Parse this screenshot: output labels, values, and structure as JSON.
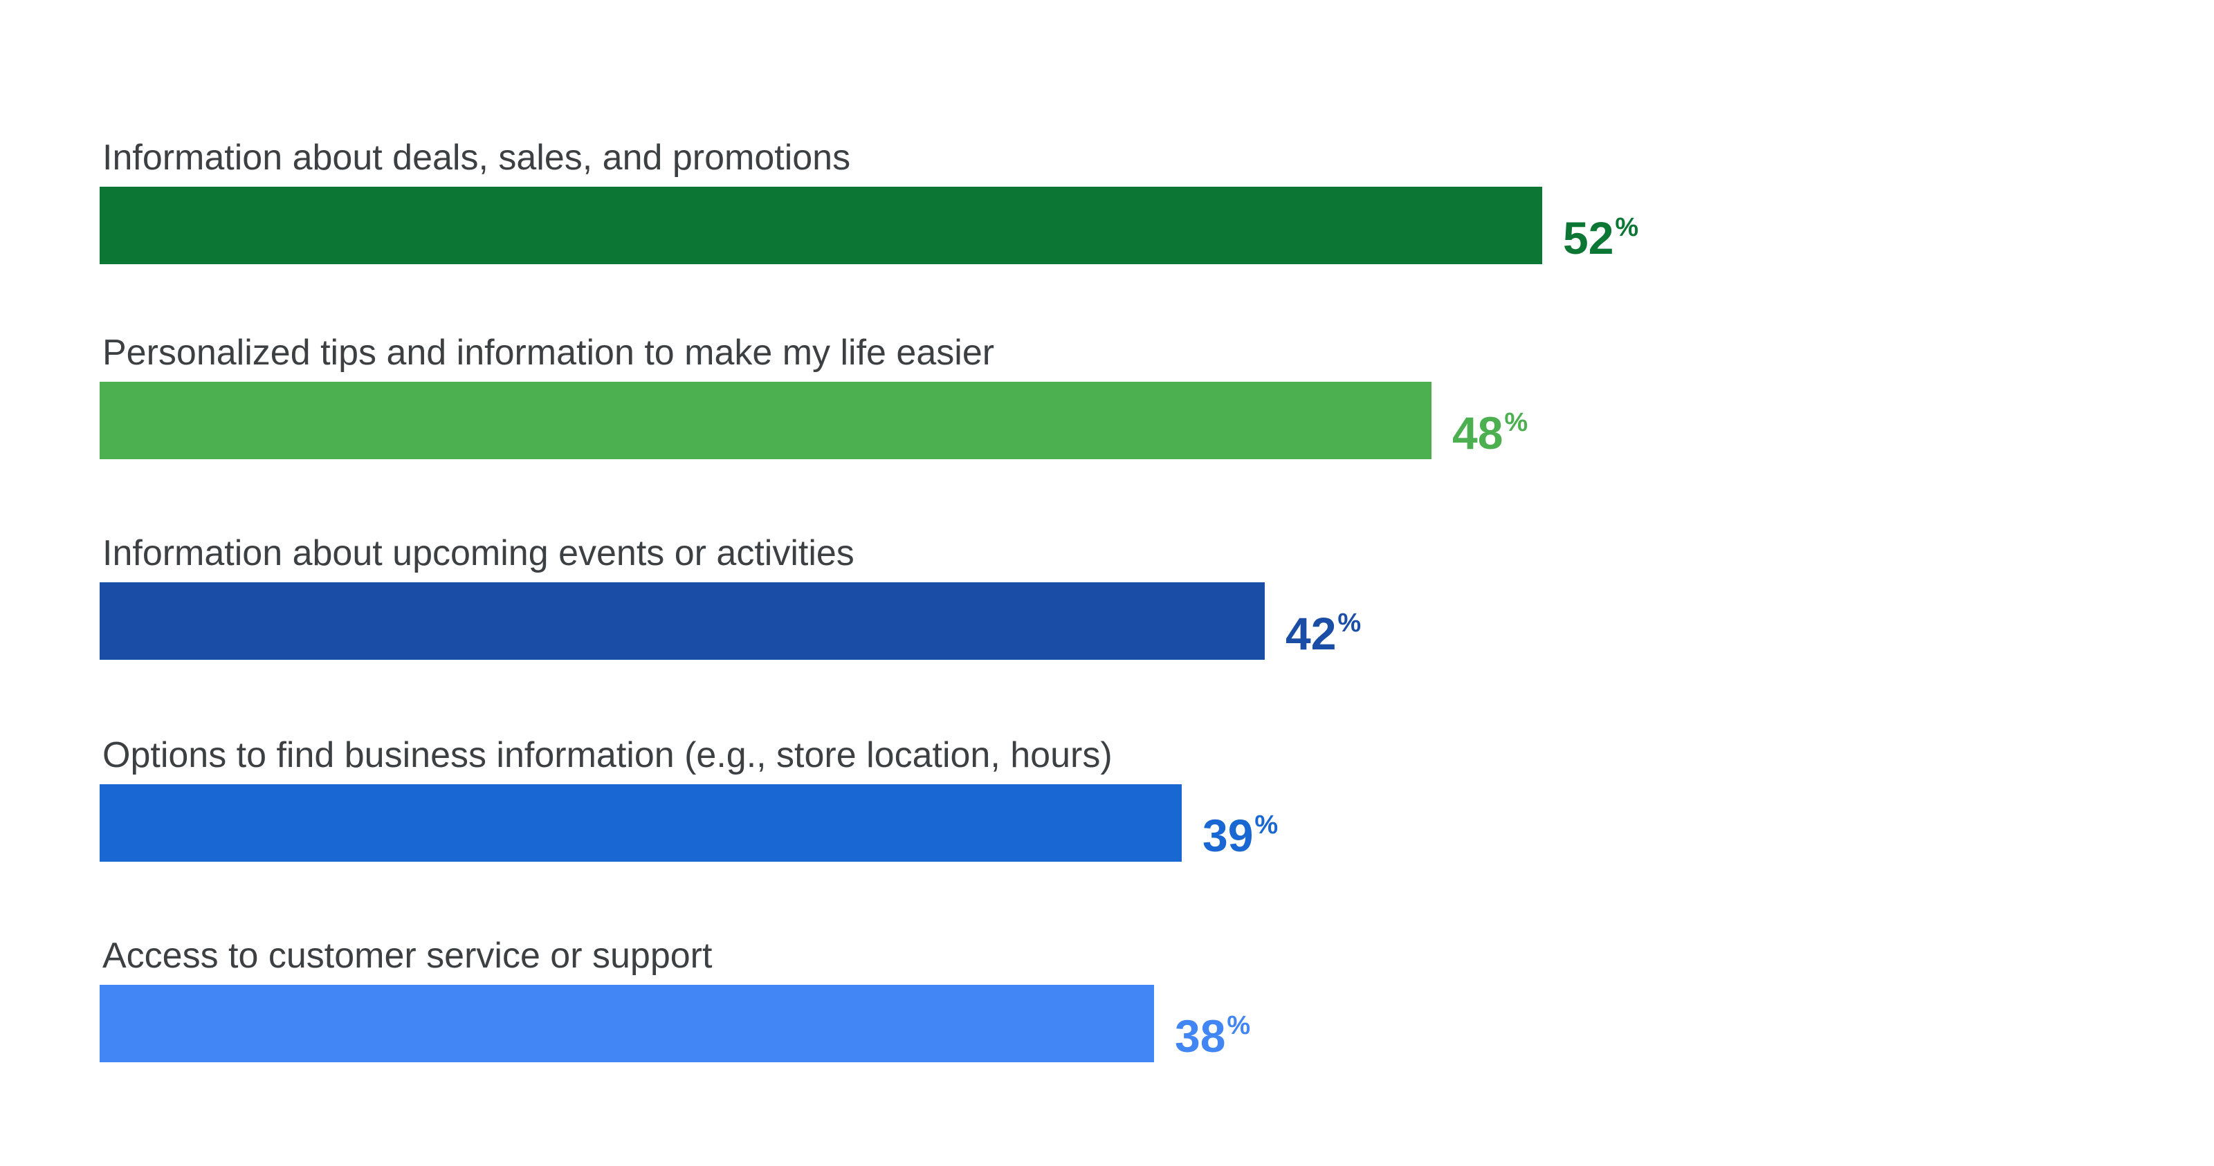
{
  "chart_data": {
    "type": "bar",
    "orientation": "horizontal",
    "categories": [
      "Information about deals, sales, and promotions",
      "Personalized tips and information to make my life easier",
      "Information about upcoming events or activities",
      "Options to find business information (e.g., store location, hours)",
      "Access to customer service or support"
    ],
    "values": [
      52,
      48,
      42,
      39,
      38
    ],
    "value_unit": "%",
    "colors": [
      "#0c7735",
      "#4caf50",
      "#1a4ea6",
      "#1967d2",
      "#4285f4"
    ],
    "title": "",
    "xlabel": "",
    "ylabel": "",
    "xlim": [
      0,
      52
    ],
    "grid": false,
    "legend": "none"
  }
}
